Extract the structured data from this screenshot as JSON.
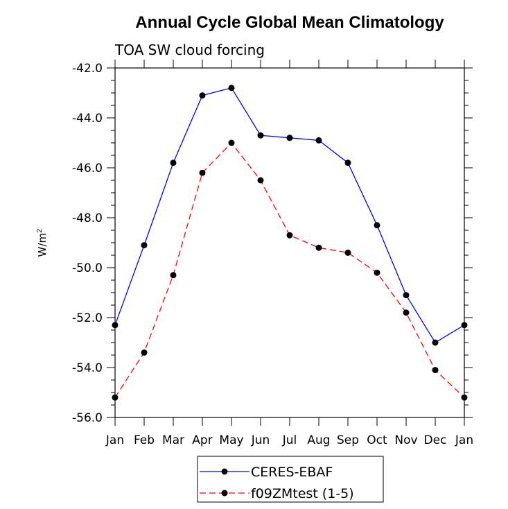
{
  "chart_data": {
    "type": "line",
    "title": "Annual Cycle Global Mean Climatology",
    "subtitle": "TOA SW cloud forcing",
    "ylabel": "W/m",
    "ylabel_superscript": "2",
    "xlabel": "",
    "categories": [
      "Jan",
      "Feb",
      "Mar",
      "Apr",
      "May",
      "Jun",
      "Jul",
      "Aug",
      "Sep",
      "Oct",
      "Nov",
      "Dec",
      "Jan"
    ],
    "ylim": [
      -56.0,
      -42.0
    ],
    "y_ticks": [
      "-42.0",
      "-44.0",
      "-46.0",
      "-48.0",
      "-50.0",
      "-52.0",
      "-54.0",
      "-56.0"
    ],
    "y_tick_values": [
      -42,
      -44,
      -46,
      -48,
      -50,
      -52,
      -54,
      -56
    ],
    "grid": false,
    "legend_position": "bottom-center",
    "series": [
      {
        "name": "CERES-EBAF",
        "color": "#0000ff",
        "dash": "solid",
        "values": [
          -52.3,
          -49.1,
          -45.8,
          -43.1,
          -42.8,
          -44.7,
          -44.8,
          -44.9,
          -45.8,
          -48.3,
          -51.1,
          -53.0,
          -52.3
        ]
      },
      {
        "name": "f09ZMtest (1-5)",
        "color": "#ff0000",
        "dash": "dashed",
        "values": [
          -55.2,
          -53.4,
          -50.3,
          -46.2,
          -45.0,
          -46.5,
          -48.7,
          -49.2,
          -49.4,
          -50.2,
          -51.8,
          -54.1,
          -55.2
        ]
      }
    ]
  }
}
